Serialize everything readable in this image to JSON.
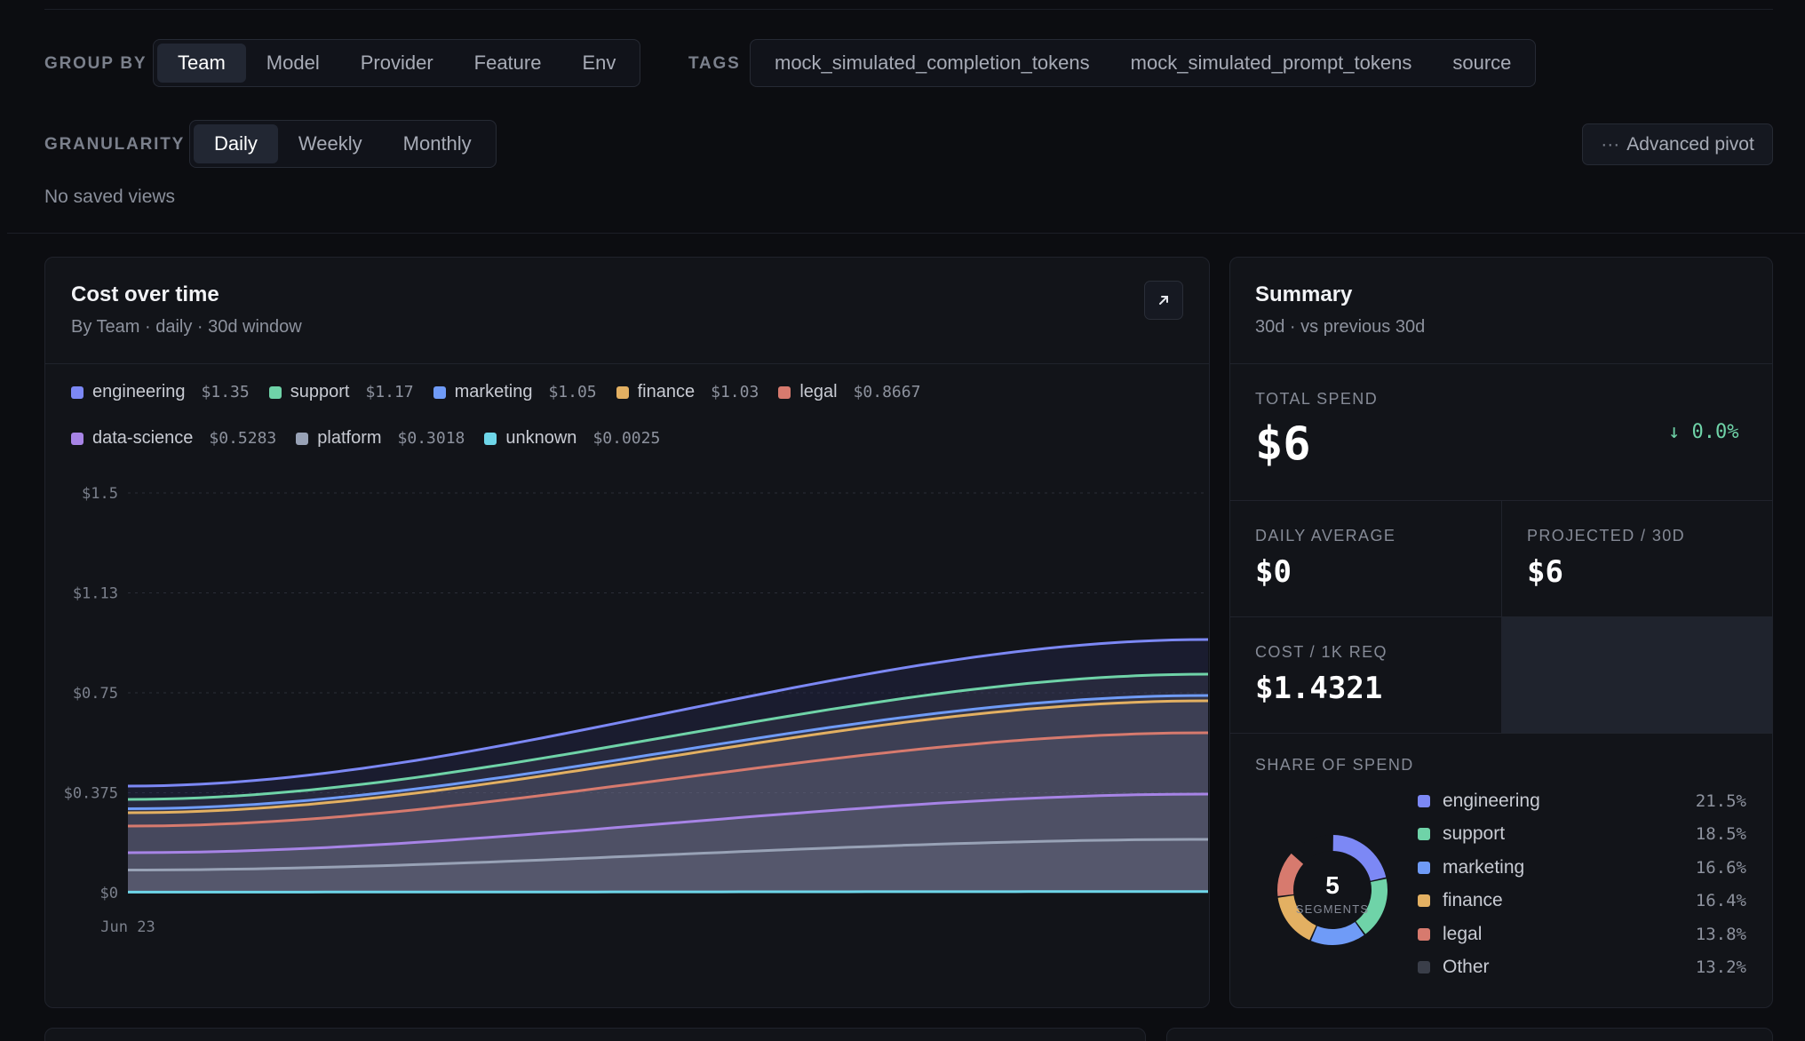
{
  "filters": {
    "group_by_label": "GROUP BY",
    "group_by_options": [
      "Team",
      "Model",
      "Provider",
      "Feature",
      "Env"
    ],
    "tags_label": "TAGS",
    "tags": [
      "mock_simulated_completion_tokens",
      "mock_simulated_prompt_tokens",
      "source"
    ],
    "granularity_label": "GRANULARITY",
    "granularity_options": [
      "Daily",
      "Weekly",
      "Monthly"
    ],
    "advanced_pivot": "Advanced pivot",
    "saved_views": "No saved views"
  },
  "cost_card": {
    "title": "Cost over time",
    "subtitle": "By Team · daily · 30d window",
    "legend": [
      {
        "name": "engineering",
        "value": "$1.35",
        "color": "#7c88f5"
      },
      {
        "name": "support",
        "value": "$1.17",
        "color": "#6fd3a8"
      },
      {
        "name": "marketing",
        "value": "$1.05",
        "color": "#6f9bf7"
      },
      {
        "name": "finance",
        "value": "$1.03",
        "color": "#e3b062"
      },
      {
        "name": "legal",
        "value": "$0.8667",
        "color": "#d77a6e"
      },
      {
        "name": "data-science",
        "value": "$0.5283",
        "color": "#a784e6"
      },
      {
        "name": "platform",
        "value": "$0.3018",
        "color": "#98a2b6"
      },
      {
        "name": "unknown",
        "value": "$0.0025",
        "color": "#6ed6e9"
      }
    ]
  },
  "chart_data": {
    "type": "area",
    "y_ticks": [
      "$1.5",
      "$1.13",
      "$0.75",
      "$0.375",
      "$0"
    ],
    "x_ticks": [
      "Jun 23"
    ],
    "ylim": [
      0,
      1.5
    ],
    "grid": true,
    "legend_position": "top-left",
    "x": [
      0,
      1
    ],
    "series": [
      {
        "name": "engineering",
        "values": [
          0.4,
          0.95
        ]
      },
      {
        "name": "support",
        "values": [
          0.35,
          0.82
        ]
      },
      {
        "name": "marketing",
        "values": [
          0.315,
          0.74
        ]
      },
      {
        "name": "finance",
        "values": [
          0.3,
          0.72
        ]
      },
      {
        "name": "legal",
        "values": [
          0.25,
          0.6
        ]
      },
      {
        "name": "data-science",
        "values": [
          0.15,
          0.37
        ]
      },
      {
        "name": "platform",
        "values": [
          0.085,
          0.2
        ]
      },
      {
        "name": "unknown",
        "values": [
          0.002,
          0.004
        ]
      }
    ]
  },
  "summary": {
    "title": "Summary",
    "subtitle": "30d · vs previous 30d",
    "total_spend_label": "TOTAL SPEND",
    "total_spend": "$6",
    "change": "↓ 0.0%",
    "daily_average_label": "DAILY AVERAGE",
    "daily_average": "$0",
    "projected_label": "PROJECTED / 30D",
    "projected": "$6",
    "cost_per_1k_label": "COST / 1K REQ",
    "cost_per_1k": "$1.4321",
    "share_label": "SHARE OF SPEND",
    "segments_count": "5",
    "segments_label": "SEGMENTS",
    "share": [
      {
        "name": "engineering",
        "pct": "21.5%",
        "color": "#7c88f5"
      },
      {
        "name": "support",
        "pct": "18.5%",
        "color": "#6fd3a8"
      },
      {
        "name": "marketing",
        "pct": "16.6%",
        "color": "#6f9bf7"
      },
      {
        "name": "finance",
        "pct": "16.4%",
        "color": "#e3b062"
      },
      {
        "name": "legal",
        "pct": "13.8%",
        "color": "#d77a6e"
      },
      {
        "name": "Other",
        "pct": "13.2%",
        "color": "#3a3e49"
      }
    ]
  }
}
